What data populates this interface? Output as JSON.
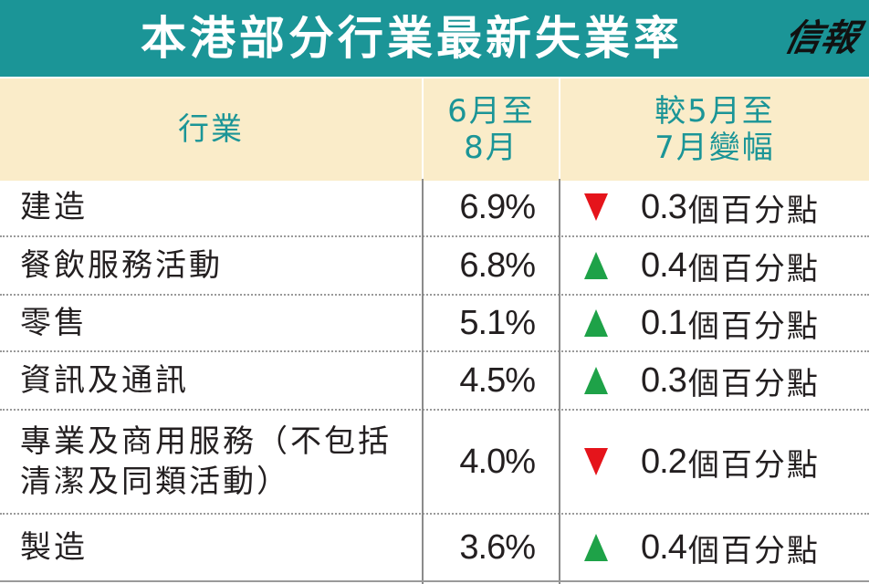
{
  "title": "本港部分行業最新失業率",
  "brand": "信報",
  "header": {
    "industry": "行業",
    "rate_line1": "6月至",
    "rate_line2": "8月",
    "change_line1": "較5月至",
    "change_line2": "7月變幅"
  },
  "colors": {
    "title_bar": "#1b9597",
    "header_bg": "#faecc9",
    "header_text": "#1b9597",
    "up_arrow": "#1ea248",
    "down_arrow": "#e5141b"
  },
  "rows": [
    {
      "industry": "建造",
      "rate": "6.9%",
      "direction": "down",
      "change": "0.3",
      "unit": "個百分點"
    },
    {
      "industry": "餐飲服務活動",
      "rate": "6.8%",
      "direction": "up",
      "change": "0.4",
      "unit": "個百分點"
    },
    {
      "industry": "零售",
      "rate": "5.1%",
      "direction": "up",
      "change": "0.1",
      "unit": "個百分點"
    },
    {
      "industry": "資訊及通訊",
      "rate": "4.5%",
      "direction": "up",
      "change": "0.3",
      "unit": "個百分點"
    },
    {
      "industry": "專業及商用服務（不包括清潔及同類活動）",
      "rate": "4.0%",
      "direction": "down",
      "change": "0.2",
      "unit": "個百分點"
    },
    {
      "industry": "製造",
      "rate": "3.6%",
      "direction": "up",
      "change": "0.4",
      "unit": "個百分點"
    }
  ]
}
